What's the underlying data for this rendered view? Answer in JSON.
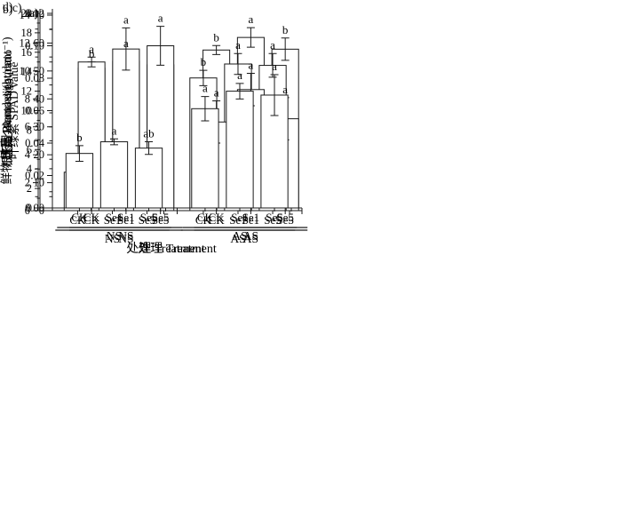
{
  "colors": {
    "background": "#ffffff",
    "axis": "#1a1a1a",
    "bar_fill": "#ffffff",
    "bar_stroke": "#1a1a1a",
    "text": "#000000"
  },
  "chart_data": [
    {
      "type": "bar",
      "panel_label": "a)",
      "ylabel": "叶绿素 SPAD value",
      "xlabel": "",
      "ylim": [
        0,
        70
      ],
      "ytick_major": 10,
      "ytick_minor": 5,
      "ydecimals": 0,
      "groups": [
        {
          "label": "NS",
          "bars": [
            {
              "label": "CK",
              "value": 51.0,
              "err": 2.2,
              "letter": "b"
            },
            {
              "label": "Se1",
              "value": 53.5,
              "err": 3.5,
              "letter": "a"
            },
            {
              "label": "Se5",
              "value": 52.2,
              "err": 2.4,
              "letter": "ab"
            }
          ]
        },
        {
          "label": "AS",
          "bars": [
            {
              "label": "CK",
              "value": 57.5,
              "err": 1.6,
              "letter": "b"
            },
            {
              "label": "Se1",
              "value": 62.0,
              "err": 3.5,
              "letter": "a"
            },
            {
              "label": "Se5",
              "value": 57.8,
              "err": 4.0,
              "letter": "b"
            }
          ]
        }
      ]
    },
    {
      "type": "bar",
      "panel_label": "b)",
      "ylabel": "鲜物质量 Biomass/(g·plant⁻¹)",
      "xlabel": "",
      "ylim": [
        0,
        14
      ],
      "ytick_major": 2,
      "ytick_minor": 1,
      "ydecimals": 0,
      "groups": [
        {
          "label": "NS",
          "bars": [
            {
              "label": "CK",
              "value": 2.75,
              "err": 0.4,
              "letter": "b"
            },
            {
              "label": "Se1",
              "value": 3.9,
              "err": 0.55,
              "letter": "a"
            },
            {
              "label": "Se5",
              "value": 3.1,
              "err": 0.3,
              "letter": "b"
            }
          ]
        },
        {
          "label": "AS",
          "bars": [
            {
              "label": "CK",
              "value": 9.5,
              "err": 0.55,
              "letter": "b"
            },
            {
              "label": "Se1",
              "value": 10.5,
              "err": 0.75,
              "letter": "a"
            },
            {
              "label": "Se5",
              "value": 10.4,
              "err": 0.85,
              "letter": "a"
            }
          ]
        }
      ]
    },
    {
      "type": "bar",
      "panel_label": "c)",
      "ylabel": "根冠比 Root-shoot ratio",
      "xlabel": "处理 Treatment",
      "ylim": [
        0,
        0.12
      ],
      "ytick_major": 0.02,
      "ytick_minor": 0.01,
      "ydecimals": 2,
      "groups": [
        {
          "label": "NS",
          "bars": [
            {
              "label": "CK",
              "value": 0.09,
              "err": 0.003,
              "letter": "a"
            },
            {
              "label": "Se1",
              "value": 0.098,
              "err": 0.013,
              "letter": "a"
            },
            {
              "label": "Se5",
              "value": 0.1,
              "err": 0.012,
              "letter": "a"
            }
          ]
        },
        {
          "label": "AS",
          "bars": [
            {
              "label": "CK",
              "value": 0.053,
              "err": 0.013,
              "letter": "a"
            },
            {
              "label": "Se1",
              "value": 0.073,
              "err": 0.01,
              "letter": "a"
            },
            {
              "label": "Se5",
              "value": 0.055,
              "err": 0.013,
              "letter": "a"
            }
          ]
        }
      ]
    },
    {
      "type": "bar",
      "panel_label": "d)",
      "ylabel": "株高 Plant height/cm",
      "xlabel": "处理 Treatment",
      "ylim": [
        0,
        20
      ],
      "ytick_major": 2,
      "ytick_minor": 1,
      "ydecimals": 0,
      "groups": [
        {
          "label": "NS",
          "bars": [
            {
              "label": "CK",
              "value": 5.6,
              "err": 0.8,
              "letter": "b"
            },
            {
              "label": "Se1",
              "value": 6.8,
              "err": 0.3,
              "letter": "a"
            },
            {
              "label": "Se5",
              "value": 6.15,
              "err": 0.65,
              "letter": "ab"
            }
          ]
        },
        {
          "label": "AS",
          "bars": [
            {
              "label": "CK",
              "value": 10.2,
              "err": 1.25,
              "letter": "a"
            },
            {
              "label": "Se1",
              "value": 12.0,
              "err": 0.8,
              "letter": "a"
            },
            {
              "label": "Se5",
              "value": 11.6,
              "err": 2.1,
              "letter": "a"
            }
          ]
        }
      ]
    }
  ]
}
